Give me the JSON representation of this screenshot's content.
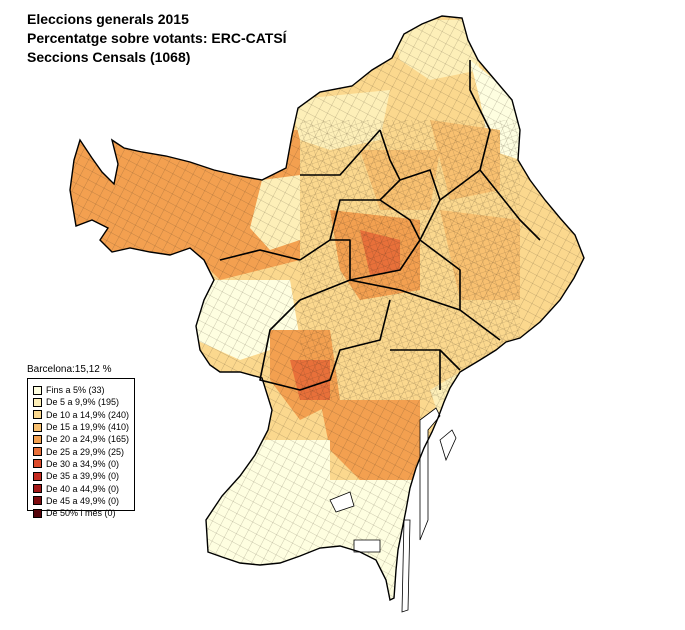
{
  "title": {
    "lines": [
      "Eleccions generals 2015",
      "Percentatge sobre votants: ERC-CATSÍ",
      "Seccions Censals (1068)"
    ]
  },
  "summary": "Barcelona:15,12 %",
  "legend": {
    "items": [
      {
        "label": "Fins a 5% (33)",
        "color": "#fefee0"
      },
      {
        "label": "De 5 a 9,9% (195)",
        "color": "#fdefb8"
      },
      {
        "label": "De 10 a 14,9% (240)",
        "color": "#fbd88e"
      },
      {
        "label": "De 15 a 19,9% (410)",
        "color": "#f8c070"
      },
      {
        "label": "De 20 a 24,9% (165)",
        "color": "#f3a050"
      },
      {
        "label": "De 25 a 29,9% (25)",
        "color": "#e8703a"
      },
      {
        "label": "De 30 a 34,9% (0)",
        "color": "#dc4a2a"
      },
      {
        "label": "De 35 a 39,9% (0)",
        "color": "#c42a20"
      },
      {
        "label": "De 40 a 44,9% (0)",
        "color": "#a41818"
      },
      {
        "label": "De 45 a 49,9% (0)",
        "color": "#7e0c10"
      },
      {
        "label": "De 50% i més (0)",
        "color": "#55040a"
      }
    ]
  },
  "map": {
    "outline_color": "#000000",
    "sea_color": "#ffffff"
  }
}
